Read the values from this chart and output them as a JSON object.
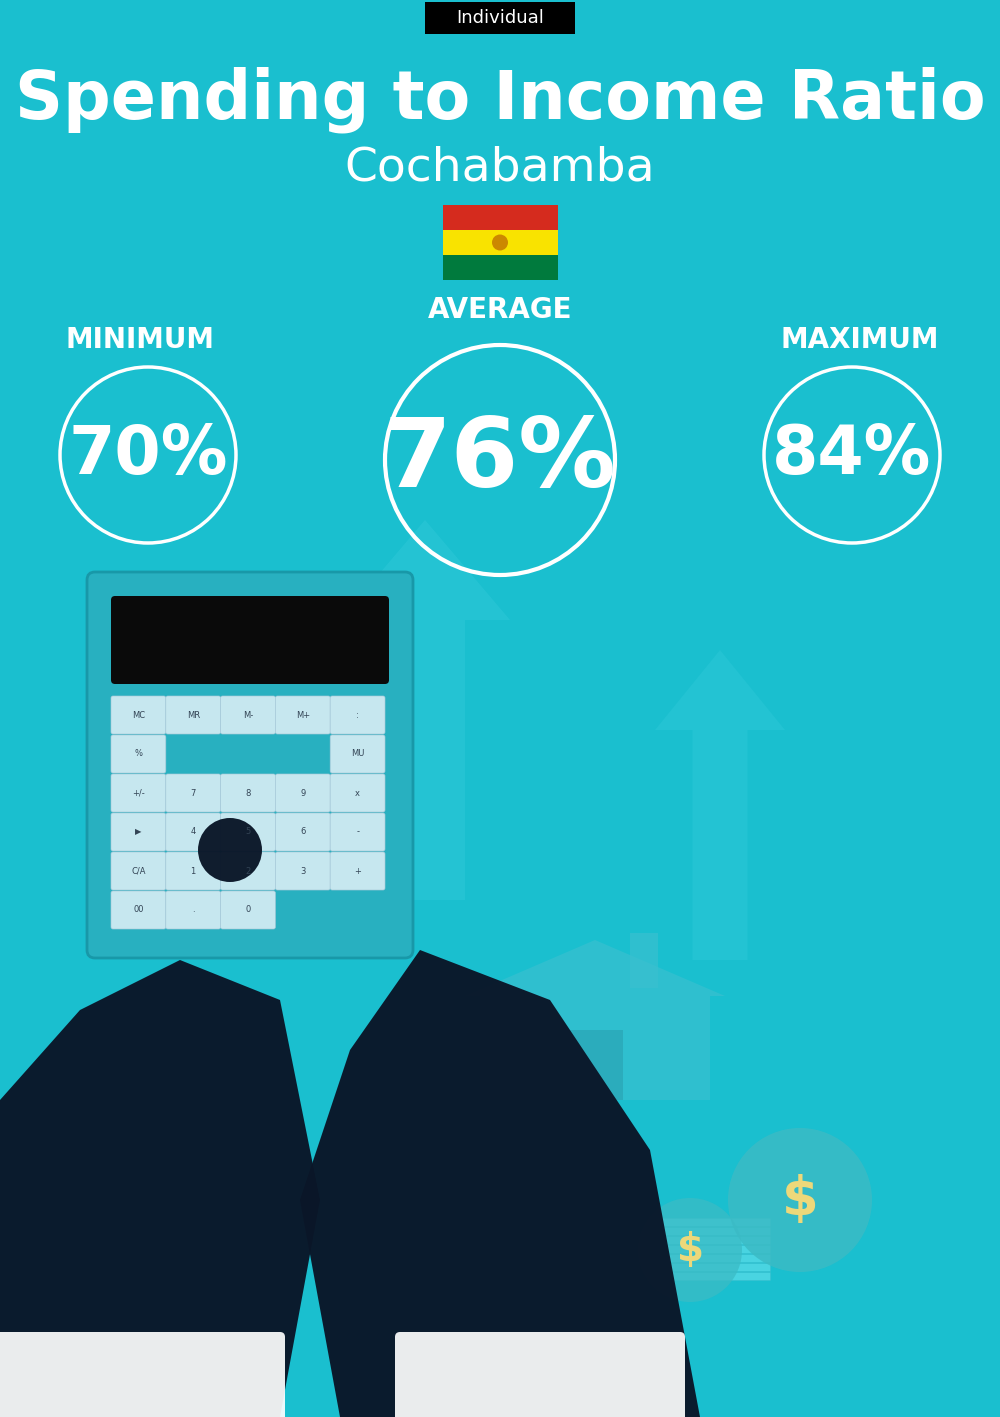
{
  "bg_color": "#1ABFCF",
  "title": "Spending to Income Ratio",
  "subtitle": "Cochabamba",
  "tag_text": "Individual",
  "tag_bg": "#000000",
  "tag_text_color": "#ffffff",
  "min_label": "MINIMUM",
  "avg_label": "AVERAGE",
  "max_label": "MAXIMUM",
  "min_value": "70%",
  "avg_value": "76%",
  "max_value": "84%",
  "text_color": "#ffffff",
  "title_fontsize": 48,
  "subtitle_fontsize": 34,
  "label_fontsize": 20,
  "value_fontsize_small": 48,
  "value_fontsize_large": 70,
  "tag_fontsize": 13,
  "flag_stripes": [
    "#D52B1E",
    "#F9E300",
    "#007A3D"
  ],
  "arrow_color": "#2EC8D8",
  "house_color": "#3BBFCF",
  "dark_color": "#0A1628",
  "figsize": [
    10.0,
    14.17
  ]
}
